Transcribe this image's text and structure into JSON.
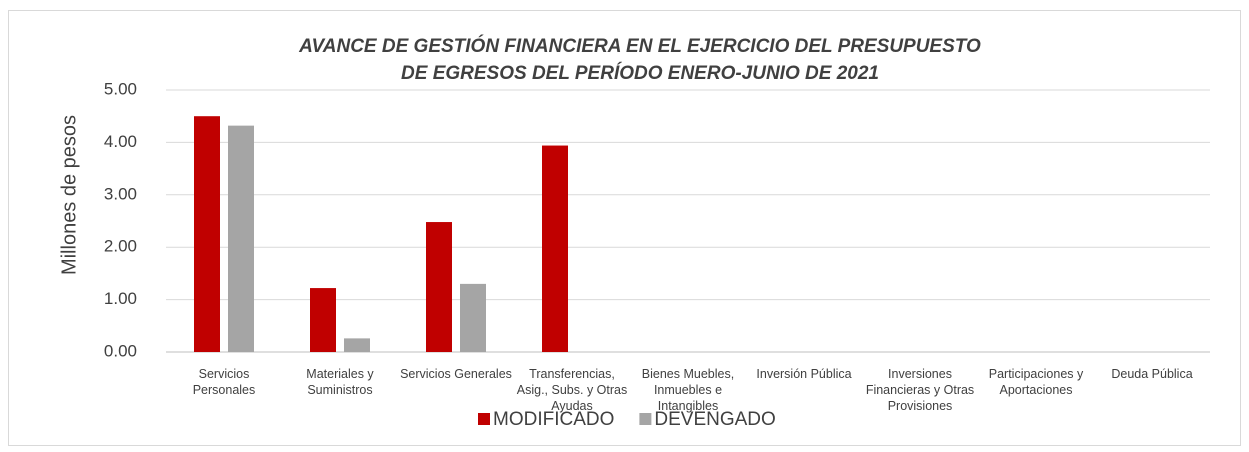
{
  "chart_data": {
    "type": "bar",
    "title": "AVANCE DE GESTIÓN FINANCIERA EN EL EJERCICIO DEL PRESUPUESTO",
    "subtitle": "DE EGRESOS DEL PERÍODO ENERO-JUNIO DE 2021",
    "y_label": "Millones de pesos",
    "categories": [
      "Servicios Personales",
      "Materiales  y Suministros",
      "Servicios Generales",
      "Transferencias, Asig., Subs. y Otras Ayudas",
      "Bienes Muebles, Inmuebles e Intangibles",
      "Inversión Pública",
      "Inversiones Financieras y Otras Provisiones",
      "Participaciones y Aportaciones",
      "Deuda  Pública"
    ],
    "series": [
      {
        "name": "MODIFICADO",
        "color": "#c00000",
        "values": [
          4.5,
          1.22,
          2.48,
          3.94,
          0,
          0,
          0,
          0,
          0
        ]
      },
      {
        "name": "DEVENGADO",
        "color": "#a5a5a5",
        "values": [
          4.32,
          0.26,
          1.3,
          0,
          0,
          0,
          0,
          0,
          0
        ]
      }
    ],
    "ylim": [
      0,
      5
    ],
    "yticks": [
      {
        "value": 0,
        "label": "0.00"
      },
      {
        "value": 1,
        "label": "1.00"
      },
      {
        "value": 2,
        "label": "2.00"
      },
      {
        "value": 3,
        "label": "3.00"
      },
      {
        "value": 4,
        "label": "4.00"
      },
      {
        "value": 5,
        "label": "5.00"
      }
    ],
    "grid": true,
    "legend": "bottom"
  }
}
